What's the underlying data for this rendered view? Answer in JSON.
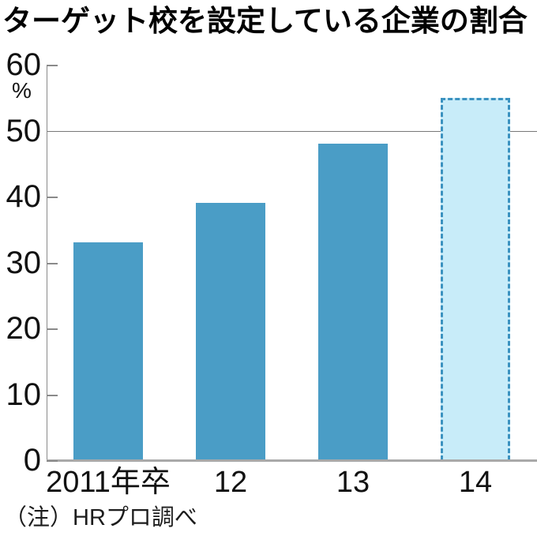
{
  "title": "ターゲット校を設定している企業の割合",
  "note": "（注）HRプロ調べ",
  "chart_data": {
    "type": "bar",
    "title": "ターゲット校を設定している企業の割合",
    "source_note": "（注）HRプロ調べ",
    "categories": [
      "2011年卒",
      "12",
      "13",
      "14"
    ],
    "values": [
      33,
      39,
      48,
      55
    ],
    "bar_styles": [
      "solid",
      "solid",
      "solid",
      "dashed-projection"
    ],
    "unit_label": "%",
    "xlabel": "",
    "ylabel": "%",
    "ylim": [
      0,
      60
    ],
    "yticks": [
      0,
      10,
      20,
      30,
      40,
      50,
      60
    ],
    "gridline_at": 50,
    "grid": "single-horizontal-line-at-50",
    "legend_position": "none",
    "colors": {
      "bar_fill": "#4a9dc6",
      "projected_fill": "#c8ecf9",
      "projected_border": "#3b92c0",
      "axis": "#8a8a8a",
      "baseline": "#a9a9a9",
      "gridline": "#787878",
      "text": "#111111"
    }
  }
}
